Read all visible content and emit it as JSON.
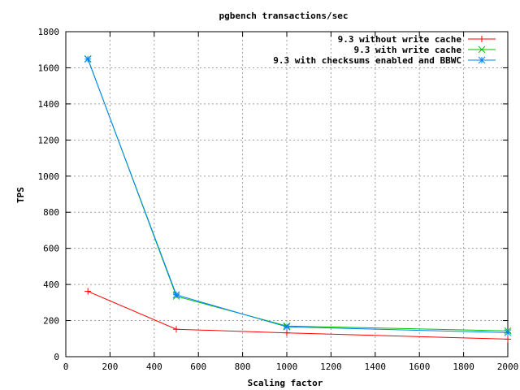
{
  "chart_data": {
    "type": "line",
    "title": "pgbench transactions/sec",
    "xlabel": "Scaling factor",
    "ylabel": "TPS",
    "xlim": [
      0,
      2000
    ],
    "ylim": [
      0,
      1800
    ],
    "xticks": [
      0,
      200,
      400,
      600,
      800,
      1000,
      1200,
      1400,
      1600,
      1800,
      2000
    ],
    "yticks": [
      0,
      200,
      400,
      600,
      800,
      1000,
      1200,
      1400,
      1600,
      1800
    ],
    "grid": true,
    "legend_position": "top-right",
    "series": [
      {
        "name": "9.3 without write cache",
        "color": "#ff0000",
        "marker": "plus",
        "x": [
          100,
          500,
          1000,
          2000
        ],
        "y": [
          362,
          152,
          132,
          97
        ]
      },
      {
        "name": "9.3 with write cache",
        "color": "#00c000",
        "marker": "cross",
        "x": [
          100,
          500,
          1000,
          2000
        ],
        "y": [
          1650,
          335,
          170,
          143
        ]
      },
      {
        "name": "9.3 with checksums enabled and BBWC",
        "color": "#0080ff",
        "marker": "star",
        "x": [
          100,
          500,
          1000,
          2000
        ],
        "y": [
          1648,
          343,
          165,
          133
        ]
      }
    ]
  }
}
